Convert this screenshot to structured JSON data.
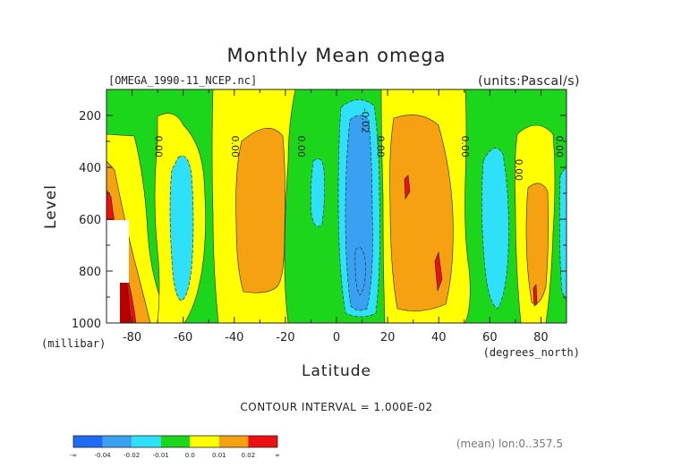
{
  "chart_data": {
    "type": "heatmap",
    "title": "Monthly Mean omega",
    "file_label": "[OMEGA_1990-11_NCEP.nc]",
    "units_label": "(units:Pascal/s)",
    "xlabel": "Latitude",
    "ylabel": "Level",
    "x_unit_label": "(degrees_north)",
    "y_unit_label": "(millibar)",
    "xlim": [
      -90,
      90
    ],
    "ylim": [
      1000,
      100
    ],
    "x_ticks": [
      -80,
      -60,
      -40,
      -20,
      0,
      20,
      40,
      60,
      80
    ],
    "y_ticks": [
      1000,
      800,
      600,
      400,
      200
    ],
    "contour_interval_label": "CONTOUR INTERVAL = 1.000E-02",
    "footer_label": "(mean) lon:0..357.5",
    "contour_labels": [
      {
        "lat": -71,
        "level": 320,
        "text": "0.00"
      },
      {
        "lat": -41,
        "level": 320,
        "text": "0.00"
      },
      {
        "lat": -15,
        "level": 320,
        "text": "0.00"
      },
      {
        "lat": 10,
        "level": 220,
        "text": "-0.02"
      },
      {
        "lat": 16,
        "level": 320,
        "text": "0.00"
      },
      {
        "lat": 49,
        "level": 320,
        "text": "0.00"
      },
      {
        "lat": 70,
        "level": 410,
        "text": "0.00"
      },
      {
        "lat": 86,
        "level": 320,
        "text": "0.00"
      }
    ],
    "bands": [
      {
        "lat": [
          -90,
          -87.5
        ],
        "level": [
          100,
          1000
        ],
        "class": "0.0"
      },
      {
        "lat": [
          -87.5,
          -70
        ],
        "level": [
          160,
          1000
        ],
        "class": "0.01"
      },
      {
        "lat": [
          -68,
          -62
        ],
        "level": [
          250,
          1000
        ],
        "class": "0.01"
      },
      {
        "lat": [
          -63,
          -54
        ],
        "level": [
          330,
          1000
        ],
        "class": "-0.01"
      },
      {
        "lat": [
          -46,
          -17
        ],
        "level": [
          200,
          1000
        ],
        "class": "0.01"
      },
      {
        "lat": [
          -43,
          -21
        ],
        "level": [
          230,
          880
        ],
        "class": "0.02"
      },
      {
        "lat": [
          -10,
          -5
        ],
        "level": [
          350,
          540
        ],
        "class": "-0.01"
      },
      {
        "lat": [
          0,
          17
        ],
        "level": [
          180,
          1000
        ],
        "class": "-0.01"
      },
      {
        "lat": [
          3,
          14
        ],
        "level": [
          190,
          960
        ],
        "class": "-0.02"
      },
      {
        "lat": [
          20,
          50
        ],
        "level": [
          100,
          1000
        ],
        "class": "0.01"
      },
      {
        "lat": [
          26,
          46
        ],
        "level": [
          200,
          1000
        ],
        "class": "0.02"
      },
      {
        "lat": [
          55,
          68
        ],
        "level": [
          300,
          1000
        ],
        "class": "-0.01"
      },
      {
        "lat": [
          71,
          85
        ],
        "level": [
          220,
          1000
        ],
        "class": "0.01"
      },
      {
        "lat": [
          73,
          85
        ],
        "level": [
          400,
          940
        ],
        "class": "0.02"
      },
      {
        "lat": [
          85,
          90
        ],
        "level": [
          300,
          1000
        ],
        "class": "-0.01"
      }
    ],
    "colorbar": {
      "tick_labels": [
        "-∞",
        "-0.04",
        "-0.02",
        "-0.01",
        "0.0",
        "0.01",
        "0.02",
        "∞"
      ],
      "colors": [
        "#1f6bf5",
        "#3aa0f2",
        "#2ee0f8",
        "#1cd61c",
        "#ffff00",
        "#f5a112",
        "#ee1010"
      ]
    },
    "grid": false
  }
}
